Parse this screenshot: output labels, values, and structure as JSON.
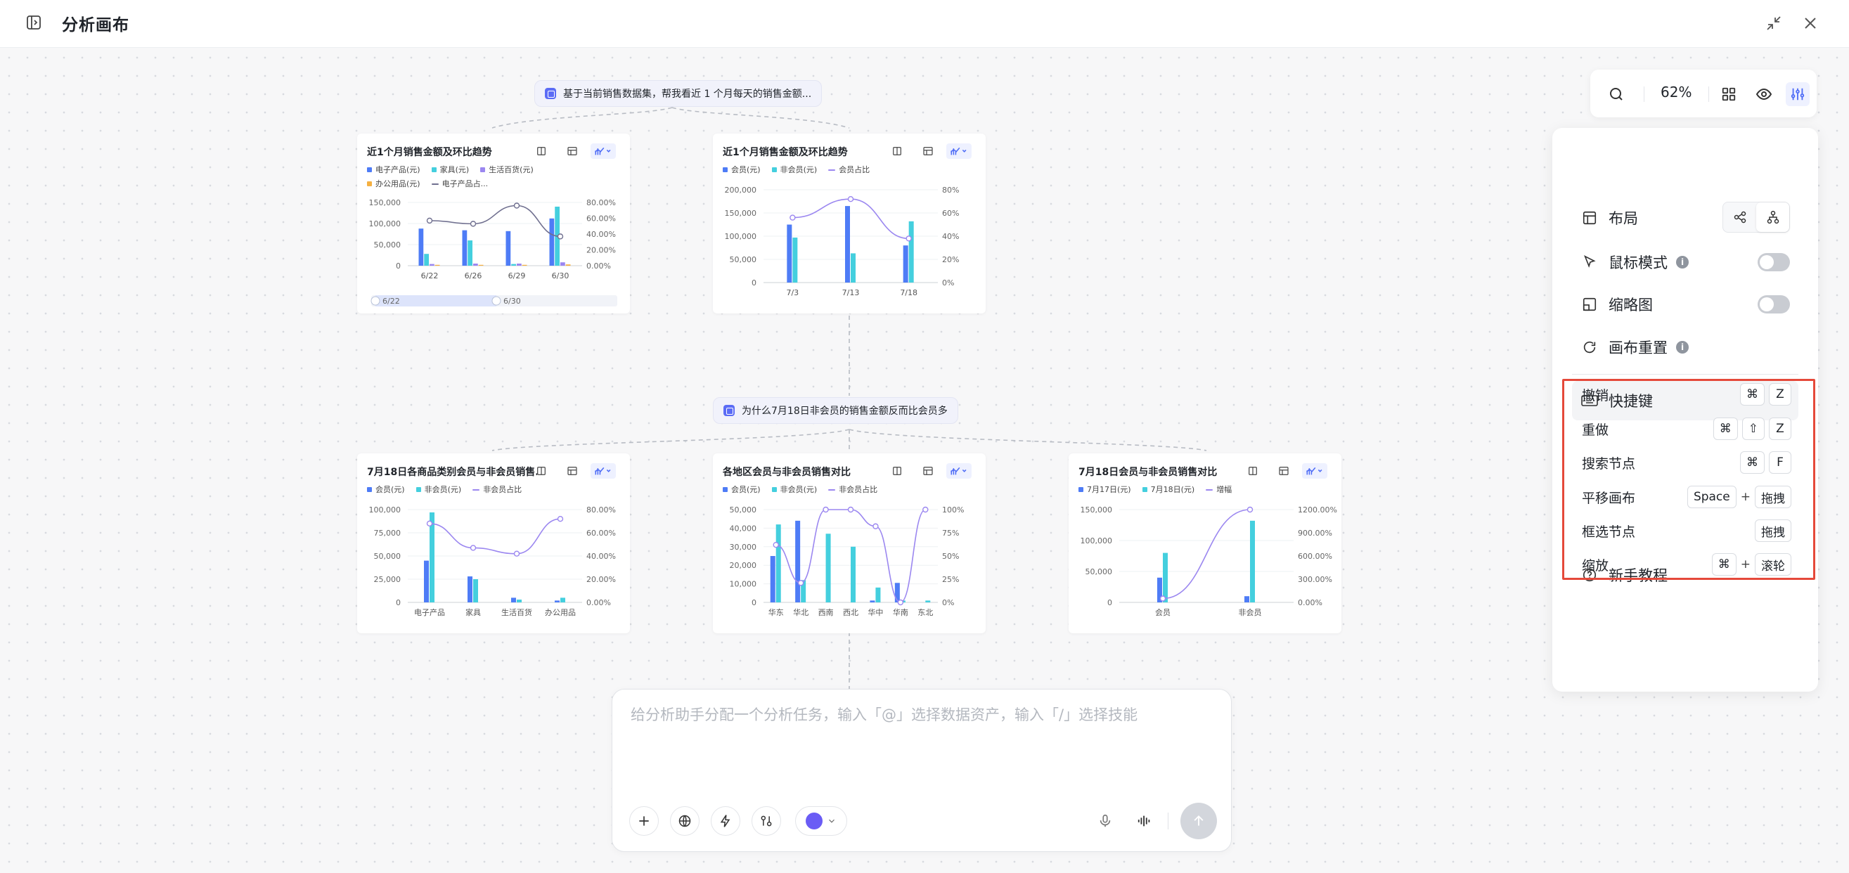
{
  "header": {
    "title": "分析画布"
  },
  "toolbar": {
    "zoom": "62%"
  },
  "nodes": {
    "q1": "基于当前销售数据集，帮我看近 1 个月每天的销售金额...",
    "q2": "为什么7月18日非会员的销售金额反而比会员多"
  },
  "colors": {
    "blue": "#4e7cf6",
    "cyan": "#44cfde",
    "purple": "#9b87f0",
    "orange": "#f5b041",
    "line": "#6f6f8f"
  },
  "cards": [
    {
      "title": "近1个月销售金额及环比趋势",
      "legend": [
        "电子产品(元)",
        "家具(元)",
        "生活百货(元)",
        "办公用品(元)",
        "电子产品占..."
      ],
      "legend_colors": [
        "#4e7cf6",
        "#44cfde",
        "#9b87f0",
        "#f5b041",
        "#6f6f8f"
      ],
      "y_left": [
        "150,000",
        "100,000",
        "50,000",
        "0"
      ],
      "y_right": [
        "80.00%",
        "60.00%",
        "40.00%",
        "20.00%",
        "0.00%"
      ],
      "x": [
        "6/22",
        "6/26",
        "6/29",
        "6/30"
      ],
      "slider": [
        "6/22",
        "6/30"
      ]
    },
    {
      "title": "近1个月销售金额及环比趋势",
      "legend": [
        "会员(元)",
        "非会员(元)",
        "会员占比"
      ],
      "legend_colors": [
        "#4e7cf6",
        "#44cfde",
        "#9b87f0"
      ],
      "y_left": [
        "200,000",
        "150,000",
        "100,000",
        "50,000",
        "0"
      ],
      "y_right": [
        "80%",
        "60%",
        "40%",
        "20%",
        "0%"
      ],
      "x": [
        "7/3",
        "7/13",
        "7/18"
      ]
    },
    {
      "title": "7月18日各商品类别会员与非会员销售...",
      "legend": [
        "会员(元)",
        "非会员(元)",
        "非会员占比"
      ],
      "legend_colors": [
        "#4e7cf6",
        "#44cfde",
        "#9b87f0"
      ],
      "y_left": [
        "100,000",
        "75,000",
        "50,000",
        "25,000",
        "0"
      ],
      "y_right": [
        "80.00%",
        "60.00%",
        "40.00%",
        "20.00%",
        "0.00%"
      ],
      "x": [
        "电子产品",
        "家具",
        "生活百货",
        "办公用品"
      ]
    },
    {
      "title": "各地区会员与非会员销售对比",
      "legend": [
        "会员(元)",
        "非会员(元)",
        "非会员占比"
      ],
      "legend_colors": [
        "#4e7cf6",
        "#44cfde",
        "#9b87f0"
      ],
      "y_left": [
        "50,000",
        "40,000",
        "30,000",
        "20,000",
        "10,000",
        "0"
      ],
      "y_right": [
        "100%",
        "75%",
        "50%",
        "25%",
        "0%"
      ],
      "x": [
        "华东",
        "华北",
        "西南",
        "西北",
        "华中",
        "华南",
        "东北"
      ]
    },
    {
      "title": "7月18日会员与非会员销售对比",
      "legend": [
        "7月17日(元)",
        "7月18日(元)",
        "增幅"
      ],
      "legend_colors": [
        "#4e7cf6",
        "#44cfde",
        "#9b87f0"
      ],
      "y_left": [
        "150,000",
        "100,000",
        "50,000",
        "0"
      ],
      "y_right": [
        "1200.00%",
        "900.00%",
        "600.00%",
        "300.00%",
        "0.00%"
      ],
      "x": [
        "会员",
        "非会员"
      ]
    }
  ],
  "chart_data": [
    {
      "type": "bar",
      "title": "近1个月销售金额及环比趋势",
      "categories": [
        "6/22",
        "6/26",
        "6/29",
        "6/30"
      ],
      "series": [
        {
          "name": "电子产品(元)",
          "values": [
            88000,
            84000,
            82000,
            112000
          ]
        },
        {
          "name": "家具(元)",
          "values": [
            28000,
            60000,
            4000,
            140000
          ]
        },
        {
          "name": "生活百货(元)",
          "values": [
            4000,
            5000,
            5000,
            8000
          ]
        },
        {
          "name": "办公用品(元)",
          "values": [
            2000,
            2000,
            2000,
            3000
          ]
        },
        {
          "name": "电子产品占...",
          "type": "line",
          "values": [
            0.57,
            0.53,
            0.76,
            0.37
          ]
        }
      ],
      "ylim": [
        0,
        150000
      ],
      "y2lim": [
        0,
        0.8
      ]
    },
    {
      "type": "bar",
      "title": "近1个月销售金额及环比趋势",
      "categories": [
        "7/3",
        "7/13",
        "7/18"
      ],
      "series": [
        {
          "name": "会员(元)",
          "values": [
            125000,
            165000,
            80000
          ]
        },
        {
          "name": "非会员(元)",
          "values": [
            97000,
            63000,
            132000
          ]
        },
        {
          "name": "会员占比",
          "type": "line",
          "values": [
            0.56,
            0.72,
            0.38
          ]
        }
      ],
      "ylim": [
        0,
        200000
      ],
      "y2lim": [
        0,
        0.8
      ]
    },
    {
      "type": "bar",
      "title": "7月18日各商品类别会员与非会员销售...",
      "categories": [
        "电子产品",
        "家具",
        "生活百货",
        "办公用品"
      ],
      "series": [
        {
          "name": "会员(元)",
          "values": [
            45000,
            28000,
            5000,
            2000
          ]
        },
        {
          "name": "非会员(元)",
          "values": [
            97000,
            25000,
            3000,
            5000
          ]
        },
        {
          "name": "非会员占比",
          "type": "line",
          "values": [
            0.68,
            0.47,
            0.42,
            0.72
          ]
        }
      ],
      "ylim": [
        0,
        100000
      ],
      "y2lim": [
        0,
        0.8
      ]
    },
    {
      "type": "bar",
      "title": "各地区会员与非会员销售对比",
      "categories": [
        "华东",
        "华北",
        "西南",
        "西北",
        "华中",
        "华南",
        "东北"
      ],
      "series": [
        {
          "name": "会员(元)",
          "values": [
            25000,
            44000,
            0,
            0,
            1000,
            10500,
            0
          ]
        },
        {
          "name": "非会员(元)",
          "values": [
            42000,
            12000,
            37000,
            30000,
            8000,
            1000,
            1000
          ]
        },
        {
          "name": "非会员占比",
          "type": "line",
          "values": [
            0.62,
            0.21,
            1.0,
            1.0,
            0.82,
            0.0,
            1.0
          ]
        }
      ],
      "ylim": [
        0,
        50000
      ],
      "y2lim": [
        0,
        1.0
      ]
    },
    {
      "type": "bar",
      "title": "7月18日会员与非会员销售对比",
      "categories": [
        "会员",
        "非会员"
      ],
      "series": [
        {
          "name": "7月17日(元)",
          "values": [
            40000,
            10000
          ]
        },
        {
          "name": "7月18日(元)",
          "values": [
            80000,
            132000
          ]
        },
        {
          "name": "增幅",
          "type": "line",
          "values": [
            0.5,
            12.0
          ]
        }
      ],
      "ylim": [
        0,
        150000
      ],
      "y2lim": [
        0,
        12
      ]
    }
  ],
  "panel": {
    "layout": "布局",
    "mouse_mode": "鼠标模式",
    "thumbnail": "缩略图",
    "reset": "画布重置",
    "shortcuts": "快捷键",
    "help": "新手教程",
    "items": [
      {
        "label": "撤销",
        "keys": [
          "⌘",
          "Z"
        ]
      },
      {
        "label": "重做",
        "keys": [
          "⌘",
          "⇧",
          "Z"
        ]
      },
      {
        "label": "搜索节点",
        "keys": [
          "⌘",
          "F"
        ]
      },
      {
        "label": "平移画布",
        "keys": [
          "Space",
          "+",
          "拖拽"
        ]
      },
      {
        "label": "框选节点",
        "keys": [
          "拖拽"
        ]
      },
      {
        "label": "缩放",
        "keys": [
          "⌘",
          "+",
          "滚轮"
        ]
      }
    ]
  },
  "input": {
    "placeholder": "给分析助手分配一个分析任务，输入「@」选择数据资产，输入「/」选择技能"
  }
}
